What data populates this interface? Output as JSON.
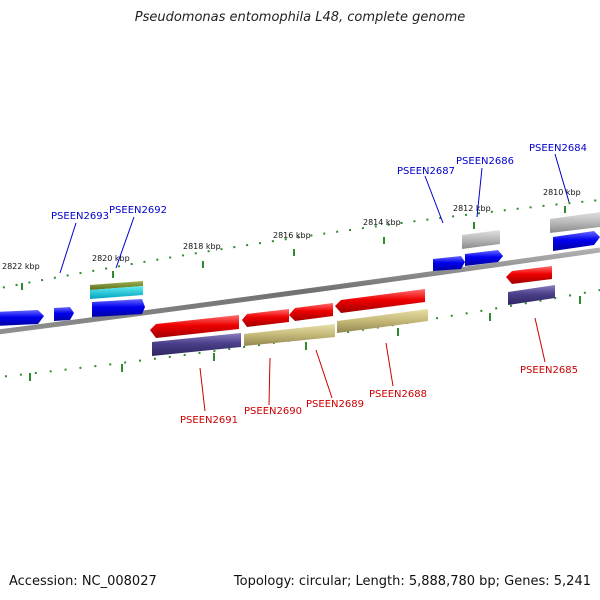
{
  "title": "Pseudomonas entomophila L48, complete genome",
  "footer": {
    "accession": "Accession: NC_008027",
    "summary": "Topology: circular; Length: 5,888,780 bp; Genes: 5,241"
  },
  "ticks": [
    "2822 kbp",
    "2820 kbp",
    "2818 kbp",
    "2816 kbp",
    "2814 kbp",
    "2812 kbp",
    "2810 kbp"
  ],
  "genes_forward": [
    "PSEEN2693",
    "PSEEN2692",
    "PSEEN2687",
    "PSEEN2686",
    "PSEEN2684"
  ],
  "genes_reverse": [
    "PSEEN2691",
    "PSEEN2690",
    "PSEEN2689",
    "PSEEN2688",
    "PSEEN2685"
  ],
  "colors": {
    "forward_gene": "#0000ee",
    "reverse_gene": "#ee0000",
    "backbone": "#808080",
    "tick": "#2e8b2e",
    "label_blue": "#0000cc",
    "label_red": "#cc0000"
  }
}
